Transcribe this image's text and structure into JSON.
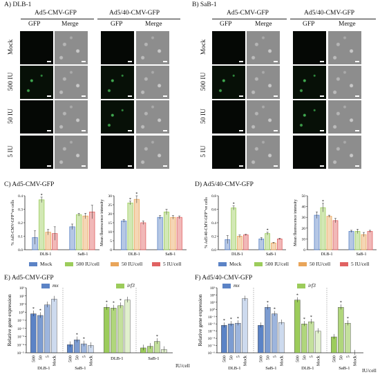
{
  "panels": {
    "A": {
      "title": "A) DLB-1",
      "constructs": [
        "Ad5-CMV-GFP",
        "Ad5/40-CMV-GFP"
      ]
    },
    "B": {
      "title": "B) SaB-1",
      "constructs": [
        "Ad5-CMV-GFP",
        "Ad5/40-CMV-GFP"
      ]
    },
    "C": {
      "title": "C) Ad5-CMV-GFP"
    },
    "D": {
      "title": "D) Ad5/40-CMV-GFP"
    },
    "E": {
      "title": "E) Ad5-CMV-GFP"
    },
    "F": {
      "title": "F) Ad5/40-CMV-GFP"
    }
  },
  "micro": {
    "col_labels": [
      "GFP",
      "Merge",
      "GFP",
      "Merge"
    ],
    "row_labels": [
      "Mock",
      "500 IU",
      "50 IU",
      "5 IU"
    ]
  },
  "bar_legend": [
    "Mock",
    "500 IU/cell",
    "50 IU/cell",
    "5 IU/cell"
  ],
  "colors": {
    "mock": "#5b83c6",
    "iu500": "#9ccc5b",
    "iu50": "#e9a55a",
    "iu5": "#e06262"
  },
  "gene_labels": {
    "mx": "mx",
    "irf3": "irf3"
  },
  "qpcr_units": "IU/cell",
  "chart_data": [
    {
      "type": "bar",
      "id": "C-left",
      "ylabel": "% Ad5-CMV-GFP⁺ve cells",
      "ylim": [
        0,
        0.4
      ],
      "yticks": [
        "0.0",
        "0.1",
        "0.2",
        "0.3",
        "0.4"
      ],
      "categories": [
        "DLB-1",
        "SaB-1"
      ],
      "series": [
        {
          "name": "Mock",
          "values": [
            0.09,
            0.17
          ],
          "err": [
            0.05,
            0.02
          ]
        },
        {
          "name": "500 IU/cell",
          "values": [
            0.37,
            0.26
          ],
          "err": [
            0.02,
            0.01
          ]
        },
        {
          "name": "50 IU/cell",
          "values": [
            0.13,
            0.25
          ],
          "err": [
            0.02,
            0.02
          ]
        },
        {
          "name": "5 IU/cell",
          "values": [
            0.12,
            0.28
          ],
          "err": [
            0.05,
            0.05
          ]
        }
      ],
      "stars": [
        [
          0,
          1
        ]
      ]
    },
    {
      "type": "bar",
      "id": "C-right",
      "ylabel": "Mean fluorescence intensity",
      "ylim": [
        0,
        30
      ],
      "yticks": [
        "0",
        "5",
        "10",
        "15",
        "20",
        "25",
        "30"
      ],
      "categories": [
        "DLB-1",
        "SaB-1"
      ],
      "series": [
        {
          "name": "Mock",
          "values": [
            16,
            18
          ],
          "err": [
            0.8,
            1.0
          ]
        },
        {
          "name": "500 IU/cell",
          "values": [
            26,
            21
          ],
          "err": [
            1.0,
            1.5
          ]
        },
        {
          "name": "50 IU/cell",
          "values": [
            28,
            18
          ],
          "err": [
            2.0,
            1.0
          ]
        },
        {
          "name": "5 IU/cell",
          "values": [
            15,
            18
          ],
          "err": [
            1.0,
            0.8
          ]
        }
      ],
      "stars": [
        [
          0,
          1
        ],
        [
          0,
          2
        ]
      ]
    },
    {
      "type": "bar",
      "id": "D-left",
      "ylabel": "% Ad5/40-CMV-GFP⁺ve cells",
      "ylim": [
        0,
        0.8
      ],
      "yticks": [
        "0.0",
        "0.2",
        "0.4",
        "0.6",
        "0.8"
      ],
      "categories": [
        "DLB-1",
        "SaB-1"
      ],
      "series": [
        {
          "name": "Mock",
          "values": [
            0.15,
            0.16
          ],
          "err": [
            0.06,
            0.02
          ]
        },
        {
          "name": "500 IU/cell",
          "values": [
            0.62,
            0.24
          ],
          "err": [
            0.03,
            0.02
          ]
        },
        {
          "name": "50 IU/cell",
          "values": [
            0.2,
            0.1
          ],
          "err": [
            0.02,
            0.01
          ]
        },
        {
          "name": "5 IU/cell",
          "values": [
            0.22,
            0.16
          ],
          "err": [
            0.01,
            0.01
          ]
        }
      ],
      "stars": [
        [
          0,
          1
        ],
        [
          1,
          1
        ]
      ]
    },
    {
      "type": "bar",
      "id": "D-right",
      "ylabel": "Mean fluorescence intensity",
      "ylim": [
        0,
        50
      ],
      "yticks": [
        "0",
        "10",
        "20",
        "30",
        "40",
        "50"
      ],
      "categories": [
        "DLB-1",
        "SaB-1"
      ],
      "series": [
        {
          "name": "Mock",
          "values": [
            32,
            17
          ],
          "err": [
            3,
            1
          ]
        },
        {
          "name": "500 IU/cell",
          "values": [
            39,
            17
          ],
          "err": [
            4,
            2
          ]
        },
        {
          "name": "50 IU/cell",
          "values": [
            31,
            14
          ],
          "err": [
            1,
            2
          ]
        },
        {
          "name": "5 IU/cell",
          "values": [
            27,
            17
          ],
          "err": [
            2,
            1
          ]
        }
      ],
      "stars": [
        [
          0,
          1
        ]
      ]
    },
    {
      "type": "bar",
      "id": "E",
      "log": true,
      "ylabel": "Relative gene expression",
      "ylim_exp": [
        -5,
        3
      ],
      "yticks": [
        "10⁻⁵",
        "10⁻⁴",
        "10⁻³",
        "10⁻²",
        "10⁻¹",
        "10⁰",
        "10¹",
        "10²",
        "10³"
      ],
      "groups": [
        {
          "gene": "mx",
          "cell": "DLB-1",
          "labels": [
            "500",
            "50",
            "5",
            "Mock"
          ],
          "exp": [
            -0.2,
            -0.4,
            0.9,
            1.6
          ],
          "stars": [
            true,
            true,
            false,
            false
          ]
        },
        {
          "gene": "mx",
          "cell": "SaB-1",
          "labels": [
            "500",
            "50",
            "5",
            "Mock"
          ],
          "exp": [
            -4.0,
            -3.4,
            -3.9,
            -4.1
          ],
          "stars": [
            false,
            true,
            true,
            false
          ]
        },
        {
          "gene": "irf3",
          "cell": "DLB-1",
          "labels": [],
          "exp": [
            0.6,
            0.5,
            0.8,
            1.5
          ],
          "stars": [
            true,
            true,
            true,
            false
          ]
        },
        {
          "gene": "irf3",
          "cell": "SaB-1",
          "labels": [],
          "exp": [
            -4.4,
            -4.2,
            -3.6,
            -4.6
          ],
          "stars": [
            false,
            false,
            true,
            false
          ]
        }
      ],
      "x_unit": "IU/cell"
    },
    {
      "type": "bar",
      "id": "F",
      "log": true,
      "ylabel": "Relative gene expression",
      "ylim_exp": [
        -6,
        3
      ],
      "yticks": [
        "10⁻⁶",
        "10⁻⁵",
        "10⁻⁴",
        "10⁻³",
        "10⁻²",
        "10⁻¹",
        "10⁰",
        "10¹",
        "10²",
        "10³"
      ],
      "groups": [
        {
          "gene": "mx",
          "cell": "DLB-1",
          "labels": [
            "500",
            "50",
            "5",
            "Mock"
          ],
          "exp": [
            -2.2,
            -2.0,
            -1.9,
            1.5
          ],
          "stars": [
            true,
            true,
            true,
            false
          ]
        },
        {
          "gene": "mx",
          "cell": "SaB-1",
          "labels": [
            "500",
            "50",
            "5",
            "Mock"
          ],
          "exp": [
            -2.2,
            0.3,
            -0.6,
            -1.8
          ],
          "stars": [
            false,
            true,
            true,
            false
          ]
        },
        {
          "gene": "irf3",
          "cell": "DLB-1",
          "labels": [
            "500",
            "50",
            "5",
            "Mock"
          ],
          "exp": [
            1.3,
            -2.0,
            -1.7,
            -3.0
          ],
          "stars": [
            true,
            true,
            true,
            false
          ]
        },
        {
          "gene": "irf3",
          "cell": "SaB-1",
          "labels": [
            "500",
            "50",
            "5",
            "Mock"
          ],
          "exp": [
            -3.8,
            0.3,
            -1.9,
            -6.0
          ],
          "stars": [
            false,
            true,
            true,
            false
          ]
        }
      ],
      "x_unit": "IU/cell"
    }
  ]
}
